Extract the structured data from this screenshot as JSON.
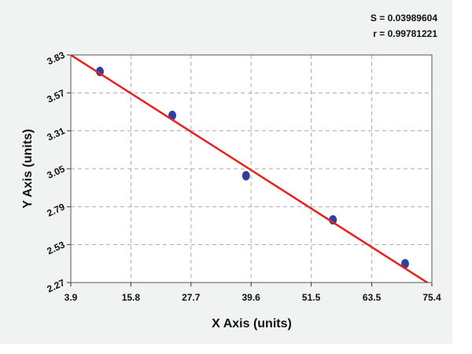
{
  "chart_data": {
    "type": "scatter",
    "annotations": [
      "S = 0.03989604",
      "r = 0.99781221"
    ],
    "x_label": "X Axis (units)",
    "y_label": "Y Axis (units)",
    "xlim": [
      3.9,
      75.4
    ],
    "xticks": [
      3.9,
      15.8,
      27.7,
      39.6,
      51.5,
      63.5,
      75.4
    ],
    "ylim": [
      2.27,
      3.83
    ],
    "yticks": [
      3.83,
      3.57,
      3.31,
      3.05,
      2.79,
      2.53,
      2.27
    ],
    "grid": true,
    "series": [
      {
        "style": "markers",
        "color": "#2f3f9e",
        "x": [
          9.66,
          24.0,
          38.6,
          55.8,
          70.1
        ],
        "values": [
          3.717,
          3.416,
          3.002,
          2.7,
          2.399
        ]
      },
      {
        "style": "line",
        "color": "#e8201c",
        "x": [
          3.9,
          75.4
        ],
        "values": [
          3.83,
          2.25
        ]
      }
    ]
  }
}
